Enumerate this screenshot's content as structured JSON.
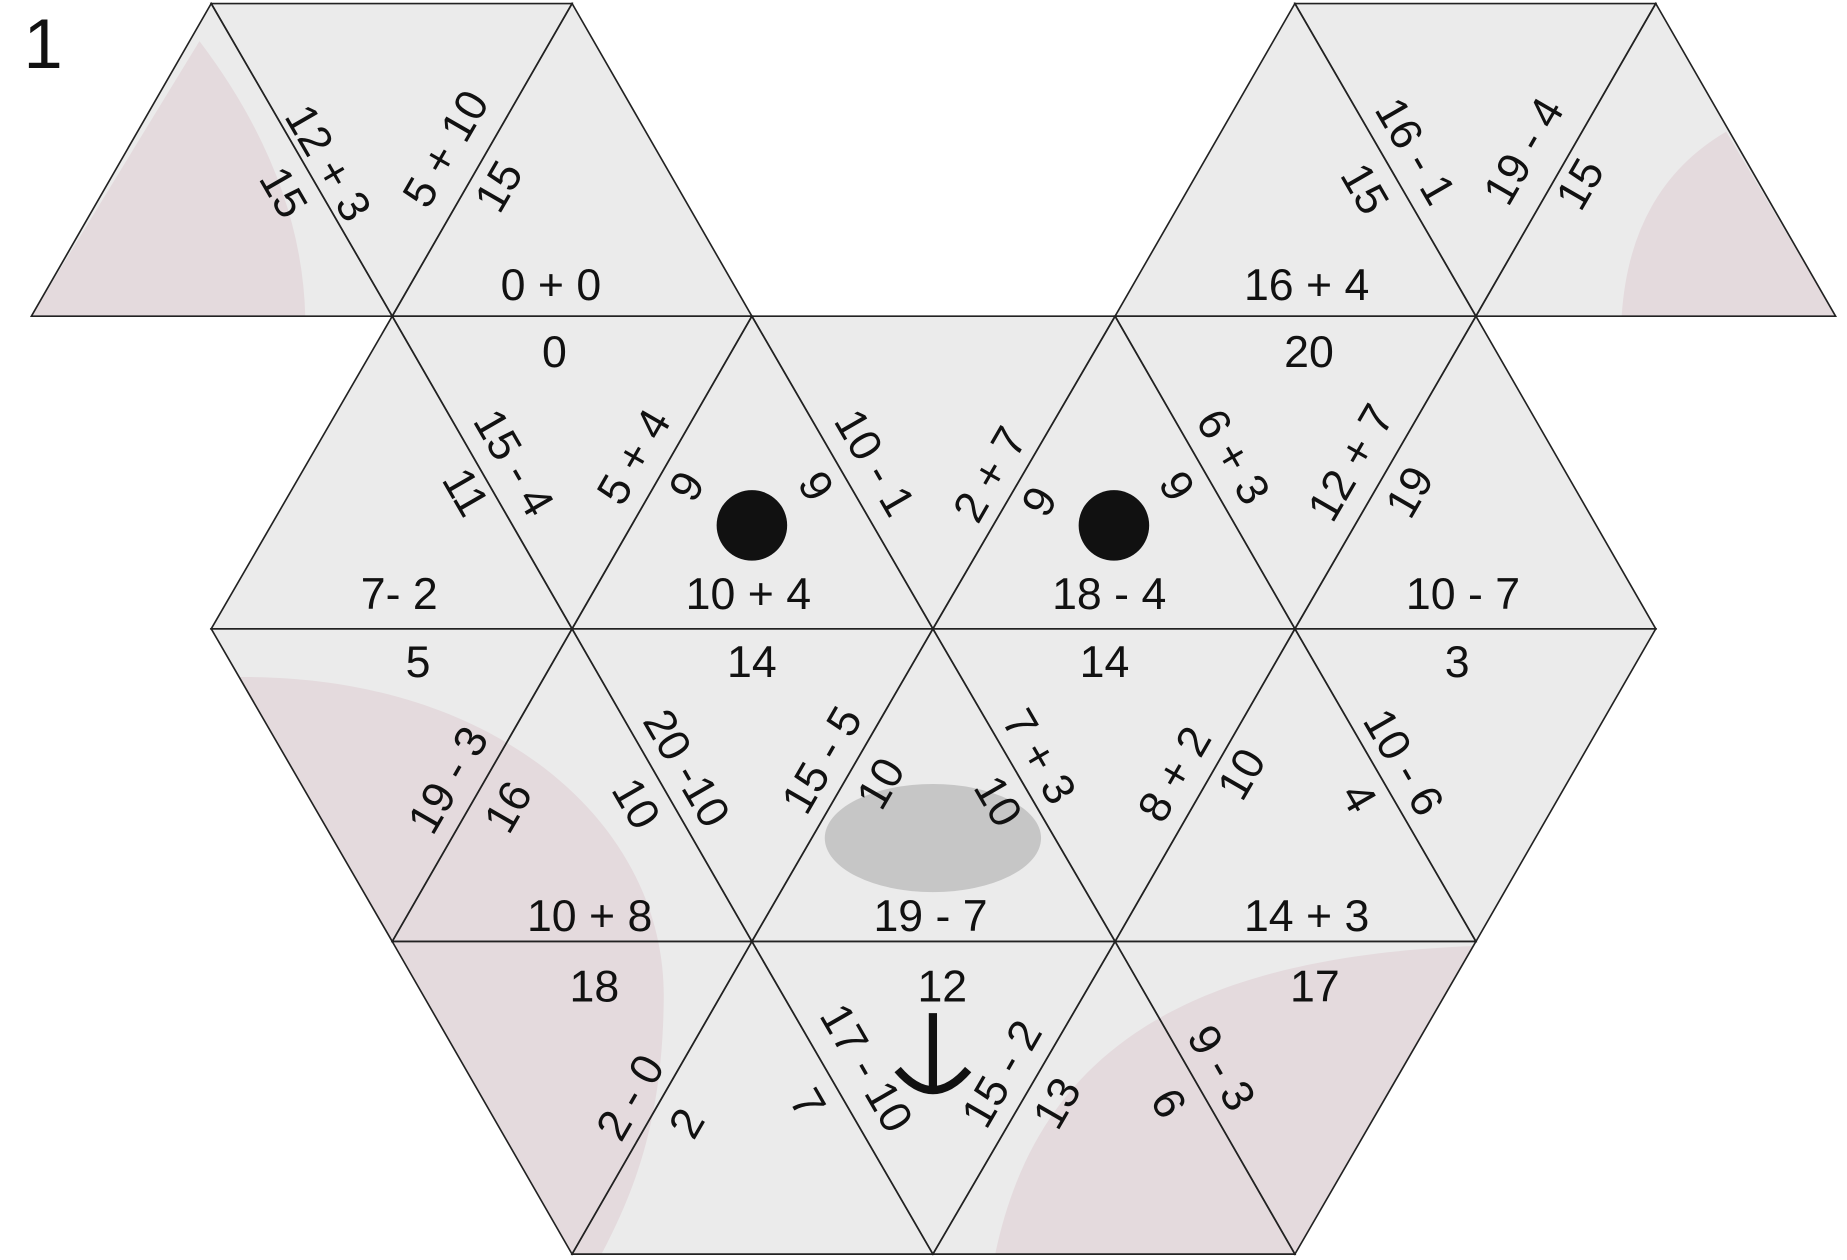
{
  "title": "1",
  "pieces": [
    "12 + 3",
    "15",
    "5 + 10",
    "15",
    "0 + 0",
    "16 - 1",
    "15",
    "19 - 4",
    "15",
    "16 + 4",
    "0",
    "15 - 4",
    "11",
    "5 + 4",
    "9",
    "9",
    "10 - 1",
    "2 + 7",
    "9",
    "9",
    "6 + 3",
    "20",
    "12 + 7",
    "19",
    "7- 2",
    "10 + 4",
    "18 - 4",
    "10 - 7",
    "5",
    "14",
    "14",
    "3",
    "19 - 3",
    "16",
    "20 -10",
    "10",
    "15 - 5",
    "10",
    "7 + 3",
    "10",
    "8 + 2",
    "10",
    "10 - 6",
    "4",
    "10 + 8",
    "19 - 7",
    "14 + 3",
    "18",
    "12",
    "17",
    "2 - 0",
    "2",
    "17 - 10",
    "7",
    "15 - 2",
    "13",
    "9 - 3",
    "6"
  ]
}
